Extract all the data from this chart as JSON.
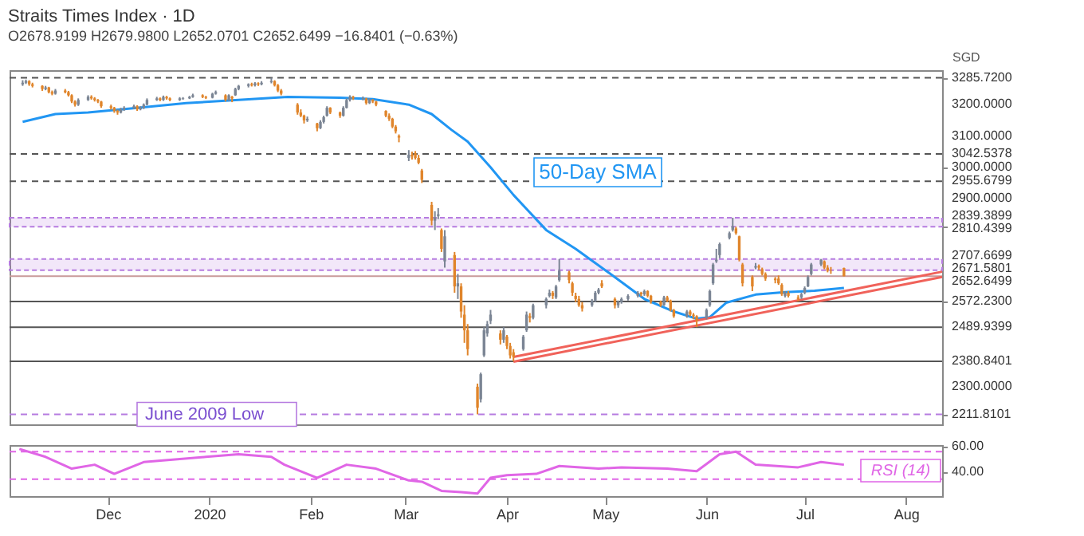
{
  "chart_data": [
    {
      "type": "candlestick",
      "title": "Straits Times Index · 1D",
      "subtitle": "O2678.9199 H2679.9800 L2652.0701 C2652.6499 −16.8401 (−0.63%)",
      "ylabel": "SGD",
      "colors": [
        "#7b8594",
        "#7b8594",
        "#e0852b",
        "#e0852b",
        "#e0852b",
        "#7b8594",
        "#e0852b",
        "#e0852b",
        "#7b8594",
        "#e0852b",
        "#e0852b",
        "#e0852b",
        "#e0852b",
        "#7b8594",
        "#7b8594",
        "#e0852b",
        "#e0852b",
        "#e0852b",
        "#e0852b",
        "#e0852b",
        "#e0852b",
        "#e0852b",
        "#7b8594",
        "#7b8594",
        "#7b8594",
        "#e0852b",
        "#7b8594",
        "#7b8594",
        "#7b8594",
        "#7b8594",
        "#e0852b",
        "#7b8594",
        "#e0852b",
        "#e0852b",
        "#7b8594",
        "#7b8594",
        "#7b8594",
        "#7b8594",
        "#e0852b",
        "#e0852b",
        "#7b8594",
        "#7b8594",
        "#e0852b",
        "#7b8594",
        "#e0852b",
        "#7b8594",
        "#7b8594",
        "#7b8594",
        "#e0852b",
        "#7b8594",
        "#e0852b",
        "#7b8594",
        "#7b8594",
        "#e0852b",
        "#e0852b",
        "#e0852b",
        "#e0852b",
        "#e0852b",
        "#e0852b",
        "#7b8594",
        "#e0852b",
        "#7b8594",
        "#7b8594",
        "#7b8594",
        "#e0852b",
        "#e0852b",
        "#7b8594",
        "#7b8594",
        "#7b8594",
        "#e0852b",
        "#7b8594",
        "#e0852b",
        "#7b8594",
        "#e0852b",
        "#e0852b",
        "#e0852b",
        "#e0852b",
        "#e0852b",
        "#e0852b",
        "#e0852b",
        "#7b8594",
        "#e0852b",
        "#e0852b",
        "#e0852b",
        "#e0852b",
        "#e0852b",
        "#7b8594",
        "#7b8594",
        "#e0852b",
        "#7b8594",
        "#e0852b",
        "#7b8594",
        "#e0852b",
        "#e0852b",
        "#e0852b",
        "#e0852b",
        "#7b8594",
        "#7b8594",
        "#7b8594",
        "#7b8594",
        "#e0852b",
        "#7b8594",
        "#e0852b",
        "#e0852b",
        "#e0852b",
        "#7b8594",
        "#7b8594",
        "#e0852b",
        "#7b8594",
        "#7b8594",
        "#7b8594",
        "#e0852b",
        "#7b8594",
        "#7b8594",
        "#e0852b",
        "#e0852b",
        "#e0852b",
        "#e0852b",
        "#e0852b",
        "#7b8594",
        "#7b8594",
        "#7b8594",
        "#e0852b",
        "#e0852b",
        "#7b8594",
        "#7b8594",
        "#7b8594",
        "#7b8594",
        "#e0852b",
        "#7b8594",
        "#e0852b",
        "#e0852b",
        "#e0852b",
        "#7b8594",
        "#e0852b",
        "#e0852b",
        "#e0852b",
        "#7b8594",
        "#e0852b",
        "#e0852b",
        "#e0852b",
        "#7b8594",
        "#7b8594",
        "#7b8594",
        "#7b8594",
        "#7b8594",
        "#7b8594",
        "#7b8594",
        "#e0852b",
        "#e0852b",
        "#e0852b",
        "#e0852b",
        "#7b8594",
        "#e0852b",
        "#e0852b",
        "#e0852b",
        "#e0852b",
        "#e0852b",
        "#e0852b",
        "#7b8594",
        "#e0852b",
        "#e0852b",
        "#7b8594",
        "#7b8594",
        "#7b8594",
        "#7b8594",
        "#7b8594",
        "#e0852b",
        "#e0852b",
        "#e0852b",
        "#e0852b"
      ],
      "x": [
        "2019-11-05",
        "2019-11-06",
        "2019-11-07",
        "2019-11-08",
        "2019-11-11",
        "2019-11-12",
        "2019-11-13",
        "2019-11-14",
        "2019-11-15",
        "2019-11-18",
        "2019-11-19",
        "2019-11-20",
        "2019-11-21",
        "2019-11-22",
        "2019-11-25",
        "2019-11-26",
        "2019-11-27",
        "2019-11-28",
        "2019-11-29",
        "2019-12-02",
        "2019-12-03",
        "2019-12-04",
        "2019-12-05",
        "2019-12-06",
        "2019-12-09",
        "2019-12-10",
        "2019-12-11",
        "2019-12-12",
        "2019-12-13",
        "2019-12-16",
        "2019-12-17",
        "2019-12-18",
        "2019-12-19",
        "2019-12-20",
        "2019-12-23",
        "2019-12-24",
        "2019-12-26",
        "2019-12-27",
        "2019-12-30",
        "2019-12-31",
        "2020-01-02",
        "2020-01-03",
        "2020-01-06",
        "2020-01-07",
        "2020-01-08",
        "2020-01-09",
        "2020-01-10",
        "2020-01-13",
        "2020-01-14",
        "2020-01-15",
        "2020-01-16",
        "2020-01-17",
        "2020-01-20",
        "2020-01-21",
        "2020-01-22",
        "2020-01-23",
        "2020-01-28",
        "2020-01-29",
        "2020-01-30",
        "2020-01-31",
        "2020-02-03",
        "2020-02-04",
        "2020-02-05",
        "2020-02-06",
        "2020-02-07",
        "2020-02-10",
        "2020-02-11",
        "2020-02-12",
        "2020-02-13",
        "2020-02-14",
        "2020-02-17",
        "2020-02-18",
        "2020-02-19",
        "2020-02-20",
        "2020-02-21",
        "2020-02-24",
        "2020-02-25",
        "2020-02-26",
        "2020-02-27",
        "2020-02-28",
        "2020-03-02",
        "2020-03-03",
        "2020-03-04",
        "2020-03-05",
        "2020-03-06",
        "2020-03-09",
        "2020-03-10",
        "2020-03-11",
        "2020-03-12",
        "2020-03-13",
        "2020-03-16",
        "2020-03-17",
        "2020-03-18",
        "2020-03-19",
        "2020-03-20",
        "2020-03-23",
        "2020-03-24",
        "2020-03-25",
        "2020-03-26",
        "2020-03-27",
        "2020-03-30",
        "2020-03-31",
        "2020-04-01",
        "2020-04-02",
        "2020-04-03",
        "2020-04-06",
        "2020-04-07",
        "2020-04-08",
        "2020-04-09",
        "2020-04-13",
        "2020-04-14",
        "2020-04-15",
        "2020-04-16",
        "2020-04-17",
        "2020-04-20",
        "2020-04-21",
        "2020-04-22",
        "2020-04-23",
        "2020-04-24",
        "2020-04-27",
        "2020-04-28",
        "2020-04-29",
        "2020-04-30",
        "2020-05-04",
        "2020-05-05",
        "2020-05-06",
        "2020-05-08",
        "2020-05-11",
        "2020-05-12",
        "2020-05-13",
        "2020-05-14",
        "2020-05-15",
        "2020-05-18",
        "2020-05-19",
        "2020-05-20",
        "2020-05-21",
        "2020-05-22",
        "2020-05-26",
        "2020-05-27",
        "2020-05-28",
        "2020-05-29",
        "2020-06-01",
        "2020-06-02",
        "2020-06-03",
        "2020-06-04",
        "2020-06-05",
        "2020-06-08",
        "2020-06-09",
        "2020-06-10",
        "2020-06-11",
        "2020-06-12",
        "2020-06-15",
        "2020-06-16",
        "2020-06-17",
        "2020-06-18",
        "2020-06-19",
        "2020-06-22",
        "2020-06-23",
        "2020-06-24",
        "2020-06-25",
        "2020-06-26",
        "2020-06-29",
        "2020-06-30",
        "2020-07-01",
        "2020-07-02",
        "2020-07-03",
        "2020-07-06",
        "2020-07-07",
        "2020-07-08",
        "2020-07-09",
        "2020-07-13"
      ],
      "ohlc": [
        [
          3265,
          3278,
          3260,
          3270
        ],
        [
          3270,
          3280,
          3266,
          3275
        ],
        [
          3275,
          3278,
          3260,
          3265
        ],
        [
          3265,
          3270,
          3255,
          3260
        ],
        [
          3260,
          3262,
          3244,
          3250
        ],
        [
          3250,
          3260,
          3246,
          3255
        ],
        [
          3255,
          3257,
          3236,
          3240
        ],
        [
          3240,
          3245,
          3230,
          3235
        ],
        [
          3235,
          3250,
          3232,
          3245
        ],
        [
          3245,
          3250,
          3236,
          3240
        ],
        [
          3240,
          3244,
          3226,
          3230
        ],
        [
          3230,
          3233,
          3205,
          3210
        ],
        [
          3210,
          3214,
          3194,
          3200
        ],
        [
          3200,
          3220,
          3196,
          3215
        ],
        [
          3215,
          3230,
          3212,
          3225
        ],
        [
          3225,
          3230,
          3216,
          3220
        ],
        [
          3220,
          3224,
          3210,
          3215
        ],
        [
          3215,
          3218,
          3205,
          3210
        ],
        [
          3210,
          3212,
          3190,
          3195
        ],
        [
          3195,
          3200,
          3184,
          3190
        ],
        [
          3190,
          3193,
          3174,
          3180
        ],
        [
          3180,
          3184,
          3168,
          3175
        ],
        [
          3175,
          3190,
          3172,
          3185
        ],
        [
          3185,
          3195,
          3180,
          3190
        ],
        [
          3190,
          3200,
          3186,
          3195
        ],
        [
          3195,
          3198,
          3180,
          3185
        ],
        [
          3185,
          3195,
          3182,
          3190
        ],
        [
          3190,
          3204,
          3186,
          3200
        ],
        [
          3200,
          3220,
          3198,
          3215
        ],
        [
          3215,
          3225,
          3212,
          3220
        ],
        [
          3220,
          3223,
          3211,
          3215
        ],
        [
          3215,
          3229,
          3212,
          3225
        ],
        [
          3225,
          3228,
          3216,
          3220
        ],
        [
          3220,
          3223,
          3211,
          3215
        ],
        [
          3215,
          3224,
          3212,
          3220
        ],
        [
          3218,
          3224,
          3216,
          3220
        ],
        [
          3220,
          3228,
          3218,
          3225
        ],
        [
          3225,
          3235,
          3222,
          3230
        ],
        [
          3230,
          3233,
          3221,
          3225
        ],
        [
          3225,
          3228,
          3218,
          3222
        ],
        [
          3222,
          3238,
          3220,
          3235
        ],
        [
          3235,
          3245,
          3232,
          3240
        ],
        [
          3230,
          3233,
          3210,
          3215
        ],
        [
          3215,
          3233,
          3212,
          3230
        ],
        [
          3225,
          3228,
          3208,
          3220
        ],
        [
          3230,
          3254,
          3228,
          3250
        ],
        [
          3250,
          3263,
          3246,
          3260
        ],
        [
          3260,
          3268,
          3255,
          3265
        ],
        [
          3265,
          3270,
          3258,
          3262
        ],
        [
          3262,
          3272,
          3258,
          3268
        ],
        [
          3268,
          3271,
          3260,
          3265
        ],
        [
          3265,
          3275,
          3262,
          3270
        ],
        [
          3272,
          3285.72,
          3268,
          3275
        ],
        [
          3275,
          3278,
          3258,
          3262
        ],
        [
          3262,
          3266,
          3240,
          3245
        ],
        [
          3245,
          3250,
          3230,
          3235
        ],
        [
          3200,
          3205,
          3168,
          3175
        ],
        [
          3175,
          3185,
          3160,
          3165
        ],
        [
          3165,
          3168,
          3140,
          3150
        ],
        [
          3150,
          3162,
          3145,
          3155
        ],
        [
          3140,
          3142,
          3115,
          3125
        ],
        [
          3125,
          3150,
          3122,
          3145
        ],
        [
          3145,
          3165,
          3140,
          3160
        ],
        [
          3165,
          3195,
          3162,
          3190
        ],
        [
          3190,
          3192,
          3170,
          3175
        ],
        [
          3175,
          3178,
          3158,
          3165
        ],
        [
          3165,
          3195,
          3162,
          3190
        ],
        [
          3190,
          3220,
          3188,
          3215
        ],
        [
          3215,
          3230,
          3210,
          3225
        ],
        [
          3225,
          3228,
          3215,
          3220
        ],
        [
          3218,
          3226,
          3214,
          3220
        ],
        [
          3220,
          3222,
          3200,
          3205
        ],
        [
          3205,
          3220,
          3202,
          3215
        ],
        [
          3215,
          3218,
          3205,
          3210
        ],
        [
          3210,
          3212,
          3195,
          3200
        ],
        [
          3180,
          3182,
          3160,
          3165
        ],
        [
          3165,
          3172,
          3148,
          3155
        ],
        [
          3155,
          3158,
          3125,
          3130
        ],
        [
          3130,
          3135,
          3108,
          3115
        ],
        [
          3100,
          3105,
          3080,
          3095
        ],
        [
          3030,
          3055,
          3020,
          3040
        ],
        [
          3040,
          3050,
          3025,
          3035
        ],
        [
          3045,
          3052,
          3025,
          3030
        ],
        [
          3030,
          3040,
          3010,
          3015
        ],
        [
          2990,
          2995,
          2950,
          2960
        ],
        [
          2880,
          2890,
          2815,
          2830
        ],
        [
          2830,
          2860,
          2800,
          2840
        ],
        [
          2845,
          2870,
          2835,
          2850
        ],
        [
          2800,
          2805,
          2730,
          2740
        ],
        [
          2700,
          2800,
          2680,
          2780
        ],
        [
          2720,
          2730,
          2600,
          2620
        ],
        [
          2620,
          2660,
          2580,
          2630
        ],
        [
          2620,
          2630,
          2520,
          2540
        ],
        [
          2530,
          2560,
          2440,
          2480
        ],
        [
          2480,
          2500,
          2400,
          2420
        ],
        [
          2300,
          2310,
          2211.81,
          2233
        ],
        [
          2260,
          2345,
          2250,
          2340
        ],
        [
          2400,
          2490,
          2395,
          2480
        ],
        [
          2470,
          2510,
          2460,
          2500
        ],
        [
          2510,
          2545,
          2500,
          2530
        ],
        [
          2470,
          2480,
          2435,
          2450
        ],
        [
          2450,
          2490,
          2440,
          2480
        ],
        [
          2460,
          2465,
          2420,
          2430
        ],
        [
          2430,
          2440,
          2390,
          2400
        ],
        [
          2410,
          2420,
          2380.84,
          2395
        ],
        [
          2420,
          2465,
          2415,
          2460
        ],
        [
          2480,
          2540,
          2475,
          2530
        ],
        [
          2525,
          2535,
          2505,
          2520
        ],
        [
          2520,
          2565,
          2515,
          2560
        ],
        [
          2560,
          2585,
          2550,
          2580
        ],
        [
          2590,
          2610,
          2585,
          2600
        ],
        [
          2600,
          2605,
          2580,
          2590
        ],
        [
          2585,
          2625,
          2580,
          2620
        ],
        [
          2640,
          2707.67,
          2635,
          2670
        ],
        [
          2665,
          2670,
          2630,
          2640
        ],
        [
          2630,
          2635,
          2590,
          2600
        ],
        [
          2590,
          2600,
          2570,
          2580
        ],
        [
          2580,
          2590,
          2555,
          2560
        ],
        [
          2560,
          2570,
          2540,
          2550
        ],
        [
          2560,
          2580,
          2555,
          2575
        ],
        [
          2575,
          2605,
          2570,
          2600
        ],
        [
          2600,
          2615,
          2595,
          2610
        ],
        [
          2630,
          2640,
          2615,
          2620
        ],
        [
          2580,
          2585,
          2550,
          2560
        ],
        [
          2560,
          2575,
          2552,
          2570
        ],
        [
          2570,
          2585,
          2565,
          2580
        ],
        [
          2580,
          2595,
          2575,
          2590
        ],
        [
          2590,
          2605,
          2585,
          2600
        ],
        [
          2600,
          2603,
          2588,
          2595
        ],
        [
          2595,
          2610,
          2590,
          2605
        ],
        [
          2605,
          2608,
          2585,
          2590
        ],
        [
          2590,
          2593,
          2565,
          2570
        ],
        [
          2570,
          2575,
          2555,
          2560
        ],
        [
          2560,
          2590,
          2558,
          2585
        ],
        [
          2585,
          2590,
          2570,
          2575
        ],
        [
          2575,
          2578,
          2540,
          2545
        ],
        [
          2545,
          2548,
          2520,
          2525
        ],
        [
          2525,
          2545,
          2520,
          2540
        ],
        [
          2540,
          2545,
          2525,
          2530
        ],
        [
          2530,
          2535,
          2515,
          2525
        ],
        [
          2525,
          2528,
          2489.94,
          2510
        ],
        [
          2520,
          2550,
          2515,
          2545
        ],
        [
          2560,
          2610,
          2555,
          2605
        ],
        [
          2630,
          2695,
          2625,
          2690
        ],
        [
          2700,
          2740,
          2695,
          2705
        ],
        [
          2720,
          2760,
          2710,
          2755
        ],
        [
          2775,
          2795,
          2770,
          2790
        ],
        [
          2800,
          2839.39,
          2795,
          2812
        ],
        [
          2805,
          2810.44,
          2785,
          2790
        ],
        [
          2780,
          2782,
          2700,
          2705
        ],
        [
          2690,
          2695,
          2620,
          2630
        ],
        [
          2650,
          2655,
          2605,
          2620
        ],
        [
          2680,
          2695,
          2675,
          2685
        ],
        [
          2685,
          2690,
          2672,
          2680
        ],
        [
          2675,
          2680,
          2655,
          2660
        ],
        [
          2660,
          2665,
          2638,
          2645
        ],
        [
          2645,
          2650,
          2630,
          2640
        ],
        [
          2645,
          2655,
          2625,
          2630
        ],
        [
          2625,
          2630,
          2590,
          2595
        ],
        [
          2590,
          2605,
          2585,
          2600
        ],
        [
          2600,
          2605,
          2585,
          2590
        ],
        [
          2585,
          2592,
          2572.23,
          2580
        ],
        [
          2585,
          2600,
          2580,
          2595
        ],
        [
          2600,
          2620,
          2595,
          2615
        ],
        [
          2620,
          2655,
          2618,
          2650
        ],
        [
          2660,
          2695,
          2655,
          2690
        ],
        [
          2690,
          2707.67,
          2685,
          2705
        ],
        [
          2700,
          2703,
          2675,
          2680
        ],
        [
          2680,
          2688,
          2665,
          2670
        ],
        [
          2670,
          2682,
          2660,
          2669.49
        ],
        [
          2678.92,
          2679.98,
          2652.07,
          2652.65
        ]
      ],
      "series": [
        {
          "name": "50-Day SMA",
          "type": "line",
          "color": "#2196f3",
          "x": [
            "2019-11-05",
            "2019-11-15",
            "2019-11-25",
            "2019-12-10",
            "2019-12-25",
            "2020-01-10",
            "2020-01-25",
            "2020-02-10",
            "2020-02-20",
            "2020-03-02",
            "2020-03-09",
            "2020-03-15",
            "2020-03-20",
            "2020-03-27",
            "2020-04-03",
            "2020-04-13",
            "2020-04-22",
            "2020-05-03",
            "2020-05-13",
            "2020-05-22",
            "2020-05-29",
            "2020-06-02",
            "2020-06-07",
            "2020-06-16",
            "2020-06-25",
            "2020-07-04",
            "2020-07-13"
          ],
          "values": [
            3145,
            3170,
            3175,
            3190,
            3205,
            3215,
            3225,
            3222,
            3218,
            3200,
            3170,
            3120,
            3082,
            3000,
            2912,
            2800,
            2740,
            2657,
            2580,
            2540,
            2517,
            2522,
            2568,
            2594,
            2602,
            2606,
            2615
          ]
        },
        {
          "type": "line",
          "color": "#f0625a",
          "x": [
            "2020-04-03",
            "2020-08-12"
          ],
          "values": [
            2395,
            2667
          ]
        },
        {
          "type": "line",
          "color": "#f0625a",
          "x": [
            "2020-04-03",
            "2020-08-12"
          ],
          "values": [
            2380,
            2650
          ]
        }
      ],
      "xlim": [
        "2019-11-01",
        "2020-08-12"
      ],
      "ylim": [
        2180,
        3310
      ],
      "yticks": [
        {
          "value": 3285.72,
          "label": "3285.7200"
        },
        {
          "value": 3200,
          "label": "3200.0000"
        },
        {
          "value": 3100,
          "label": "3100.0000"
        },
        {
          "value": 3042.5378,
          "label": "3042.5378"
        },
        {
          "value": 3000,
          "label": "3000.0000"
        },
        {
          "value": 2955.6799,
          "label": "2955.6799"
        },
        {
          "value": 2900,
          "label": "2900.0000"
        },
        {
          "value": 2839.3899,
          "label": "2839.3899"
        },
        {
          "value": 2810.4399,
          "label": "2810.4399"
        },
        {
          "value": 2707.6699,
          "label": "2707.6699"
        },
        {
          "value": 2671.5801,
          "label": "2671.5801"
        },
        {
          "value": 2652.6499,
          "label": "2652.6499"
        },
        {
          "value": 2572.23,
          "label": "2572.2300"
        },
        {
          "value": 2489.9399,
          "label": "2489.9399"
        },
        {
          "value": 2380.8401,
          "label": "2380.8401"
        },
        {
          "value": 2300,
          "label": "2300.0000"
        },
        {
          "value": 2211.8101,
          "label": "2211.8101"
        }
      ],
      "tick_labels": "y",
      "ref_lines": [
        {
          "axis": "y",
          "value": 3285.72,
          "color": "#555555",
          "line_style": "dashed"
        },
        {
          "axis": "y",
          "value": 3042.5378,
          "color": "#555555",
          "line_style": "dashed"
        },
        {
          "axis": "y",
          "value": 2955.6799,
          "color": "#555555",
          "line_style": "dashed"
        },
        {
          "axis": "y",
          "value": 2652.6499,
          "color": "#c99a9a",
          "line_style": "solid"
        },
        {
          "axis": "y",
          "value": 2572.23,
          "color": "#555555",
          "line_style": "solid"
        },
        {
          "axis": "y",
          "value": 2489.9399,
          "color": "#555555",
          "line_style": "solid"
        },
        {
          "axis": "y",
          "value": 2380.8401,
          "color": "#555555",
          "line_style": "solid"
        },
        {
          "axis": "y",
          "value": 2211.8101,
          "color": "#b67ce0",
          "line_style": "dashed",
          "label": "June 2009 Low"
        }
      ],
      "bands": [
        {
          "axis": "y",
          "from": 2671.5801,
          "to": 2707.6699,
          "color": "#b67ce0"
        },
        {
          "axis": "y",
          "from": 2810.4399,
          "to": 2839.3899,
          "color": "#b67ce0"
        }
      ]
    },
    {
      "type": "line",
      "series": [
        {
          "name": "RSI (14)",
          "color": "#e066e6",
          "x": [
            "2019-11-04",
            "2019-11-12",
            "2019-11-20",
            "2019-11-27",
            "2019-12-03",
            "2019-12-12",
            "2019-12-31",
            "2020-01-10",
            "2020-01-20",
            "2020-01-24",
            "2020-02-03",
            "2020-02-12",
            "2020-02-21",
            "2020-03-02",
            "2020-03-06",
            "2020-03-12",
            "2020-03-18",
            "2020-03-23",
            "2020-03-27",
            "2020-04-01",
            "2020-04-10",
            "2020-04-17",
            "2020-04-29",
            "2020-05-06",
            "2020-05-20",
            "2020-05-29",
            "2020-06-05",
            "2020-06-10",
            "2020-06-16",
            "2020-06-29",
            "2020-07-06",
            "2020-07-13"
          ],
          "values": [
            58,
            52,
            43,
            46,
            39,
            48,
            52,
            54,
            52,
            46,
            36,
            46,
            43,
            34,
            33,
            26,
            25,
            24,
            36,
            38,
            39,
            45,
            43,
            44,
            43,
            41,
            54,
            56,
            46,
            44,
            48,
            46
          ]
        }
      ],
      "xlim": [
        "2019-11-01",
        "2020-08-12"
      ],
      "ylim": [
        22,
        61
      ],
      "yticks": [
        {
          "value": 40,
          "label": "40.00"
        },
        {
          "value": 60,
          "label": "60.00"
        }
      ],
      "xticks": [
        {
          "value": "2019-12-01",
          "label": "Dec"
        },
        {
          "value": "2020-01-01",
          "label": "2020"
        },
        {
          "value": "2020-02-01",
          "label": "Feb"
        },
        {
          "value": "2020-03-01",
          "label": "Mar"
        },
        {
          "value": "2020-04-01",
          "label": "Apr"
        },
        {
          "value": "2020-05-01",
          "label": "May"
        },
        {
          "value": "2020-06-01",
          "label": "Jun"
        },
        {
          "value": "2020-07-01",
          "label": "Jul"
        },
        {
          "value": "2020-08-01",
          "label": "Aug"
        }
      ],
      "ref_lines": [
        {
          "axis": "y",
          "value": 56,
          "color": "#e066e6",
          "line_style": "dashed"
        },
        {
          "axis": "y",
          "value": 35,
          "color": "#e066e6",
          "line_style": "dashed"
        }
      ]
    }
  ]
}
